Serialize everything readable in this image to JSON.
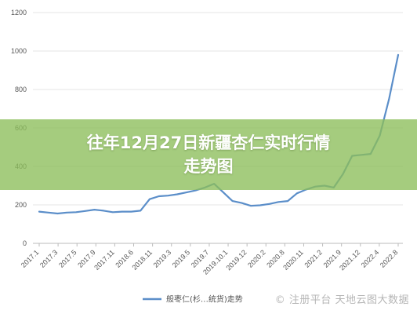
{
  "title": {
    "line1": "往年12月27日新疆杏仁实时行情",
    "line2": "走势图"
  },
  "watermark": "© 注册平台 天地云图大数据",
  "colors": {
    "series": "#5b8ec9",
    "grid": "#e4e4e4",
    "axis": "#bbbbbb",
    "banner": "#8cbe5a"
  },
  "chart_data": {
    "type": "line",
    "title": "往年12月27日新疆杏仁实时行情走势图",
    "xlabel": "",
    "ylabel": "",
    "ylim": [
      0,
      1200
    ],
    "yticks": [
      0,
      200,
      400,
      600,
      800,
      1000,
      1200
    ],
    "grid": true,
    "legend_position": "bottom",
    "x_tick_labels": [
      "2017.1",
      "2017.3",
      "2017.5",
      "2017.9",
      "2017.11",
      "2018.6",
      "2018.11",
      "2019.3",
      "2019.5",
      "2019.7",
      "2019.10.1",
      "2019.12",
      "2020.2",
      "2020.8",
      "2020.11",
      "2021.2",
      "2021.9",
      "2021.12",
      "2022.4",
      "2022.8"
    ],
    "series": [
      {
        "name": "般枣仁(杉…统货)走势",
        "color": "#5b8ec9",
        "values": [
          165,
          160,
          155,
          160,
          162,
          168,
          175,
          170,
          162,
          165,
          165,
          170,
          230,
          245,
          248,
          255,
          265,
          275,
          290,
          310,
          265,
          220,
          210,
          195,
          198,
          205,
          215,
          220,
          260,
          280,
          295,
          300,
          290,
          360,
          455,
          460,
          465,
          560,
          750,
          980
        ]
      }
    ]
  }
}
